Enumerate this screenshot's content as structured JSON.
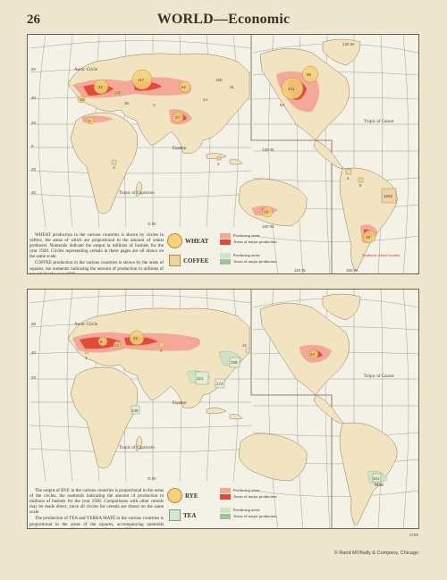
{
  "page": {
    "number": "26",
    "title": "WORLD—Economic"
  },
  "colors": {
    "paper": "#eee6cf",
    "ocean": "#f4f1e6",
    "land": "#f2e4c0",
    "producing": "#f3a898",
    "major": "#e24a3a",
    "producing_green": "#cfe3c7",
    "major_green": "#9fc49a"
  },
  "top_map": {
    "labels": {
      "arctic_circle": "Arctic Circle",
      "equator": "Equator",
      "tropic_capricorn": "Tropic of Capricorn",
      "tropic_cancer": "Tropic of Cancer",
      "southern_wheat_frontier": "Southern wheat frontier",
      "gw": "G.W.",
      "w110": "110 W.",
      "w120": "120 W.",
      "w100": "100 W.",
      "w130": "130 W.",
      "w150": "150 W.",
      "lat60": "60",
      "lat40": "40",
      "lat20": "20",
      "lat0": "0",
      "lat20s": "20",
      "lat40s": "40"
    },
    "wheat_values": [
      "41",
      "117",
      "82",
      "241",
      "98",
      "27",
      "49",
      "73",
      "198",
      "8",
      "10",
      "25",
      "36",
      "3",
      "44",
      "31",
      "84"
    ],
    "coffee_values": [
      "1600",
      "4",
      "6",
      "3",
      "2"
    ],
    "text": {
      "wheat": "WHEAT production in the various countries is shown by circles in yellow, the areas of which are proportional to the amount of wheat produced. Numerals indicate the output in millions of bushels for the year 1928. Circles representing cereals in these pages are all drawn on the same scale.",
      "coffee": "COFFEE production in the various countries is shown by the areas of squares, the numerals indicating the amount of production in millions of pounds for the year 1928."
    },
    "legend": {
      "wheat_label": "WHEAT",
      "coffee_label": "COFFEE",
      "producing_areas": "Producing areas",
      "major_areas": "Areas of major production",
      "producing_areas_2": "Producing areas",
      "major_areas_2": "Areas of major production"
    }
  },
  "bottom_map": {
    "labels": {
      "arctic_circle": "Arctic Circle",
      "equator": "Equator",
      "tropic_capricorn": "Tropic of Capricorn",
      "tropic_cancer": "Tropic of Cancer",
      "mate": "Maté",
      "gw": "G.W.",
      "lat60": "60",
      "lat40": "40",
      "lat20": "20"
    },
    "rye_values": [
      "8",
      "32",
      "13",
      "24",
      "1",
      "4"
    ],
    "tea_values": [
      "321",
      "189",
      "173",
      "21",
      "146",
      "101"
    ],
    "text": {
      "rye": "The output of RYE in the various countries is proportional to the areas of the circles, the numerals indicating the amount of production in millions of bushels for the year 1928. Comparisons with other cereals may be made direct, since all circles for cereals are drawn on the same scale.",
      "tea": "The production of TEA and YERBA MATÉ in the various countries is proportional to the areas of the squares, accompanying numerals indicating output in millions of pounds of leaves in 1928."
    },
    "legend": {
      "rye_label": "RYE",
      "tea_label": "TEA",
      "producing_areas": "Producing areas",
      "major_areas": "Areas of major production",
      "producing_areas_2": "Producing areas",
      "major_areas_2": "Areas of major production"
    }
  },
  "footer": {
    "print_number": "6789",
    "publisher": "© Rand M©Nally & Company, Chicago"
  }
}
